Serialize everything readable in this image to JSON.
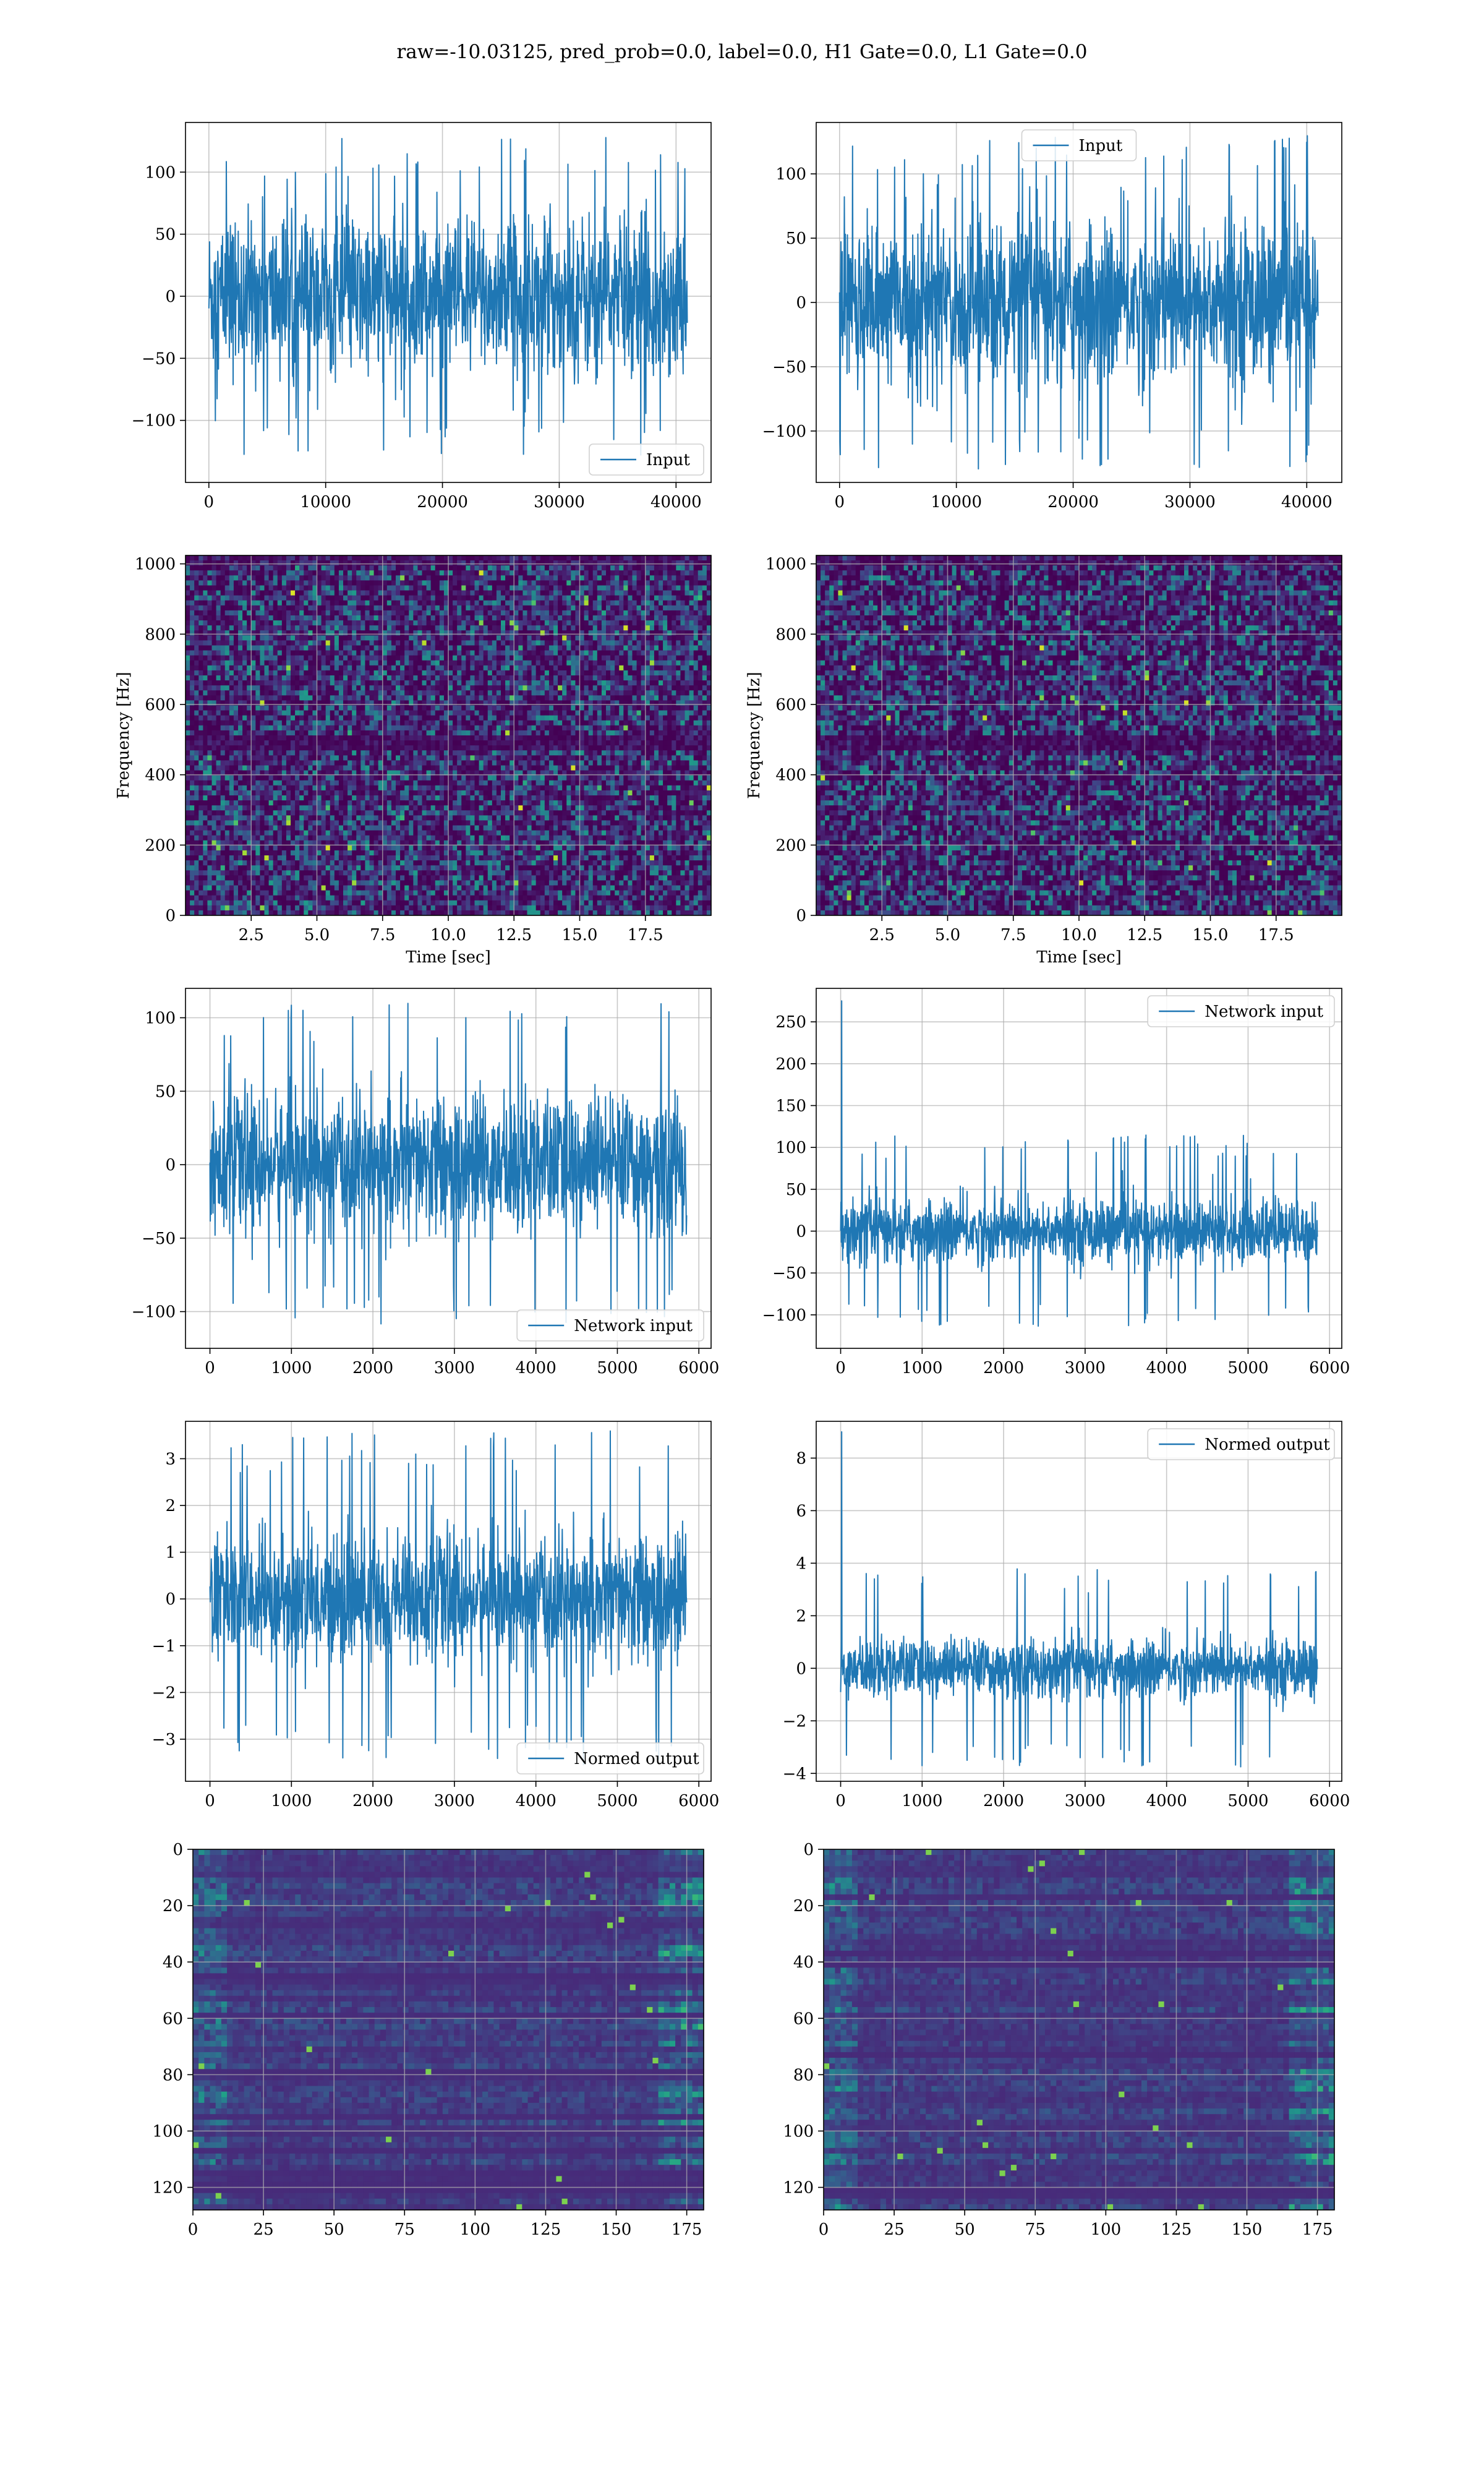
{
  "figure": {
    "title": "raw=-10.03125, pred_prob=0.0, label=0.0, H1 Gate=0.0, L1 Gate=0.0"
  },
  "colors": {
    "line": "#1f77b4",
    "grid": "#b0b0b0",
    "viridis_dark": "#440154",
    "viridis_blue": "#3b528b",
    "viridis_teal": "#21918c",
    "viridis_green": "#5ec962",
    "viridis_yellow": "#fde725"
  },
  "chart_data": [
    {
      "id": "h1_input",
      "type": "line",
      "series": [
        {
          "name": "Input",
          "x_range": [
            0,
            40960
          ],
          "amplitude_typical": 75,
          "amplitude_peak": 128
        }
      ],
      "xlim": [
        -2000,
        43000
      ],
      "ylim": [
        -150,
        140
      ],
      "xticks": [
        0,
        10000,
        20000,
        30000,
        40000
      ],
      "yticks": [
        -100,
        -50,
        0,
        50,
        100
      ],
      "legend_loc": "lower right",
      "grid": true
    },
    {
      "id": "l1_input",
      "type": "line",
      "series": [
        {
          "name": "Input",
          "x_range": [
            0,
            40960
          ],
          "amplitude_typical": 75,
          "amplitude_peak": 130
        }
      ],
      "xlim": [
        -2000,
        43000
      ],
      "ylim": [
        -140,
        140
      ],
      "xticks": [
        0,
        10000,
        20000,
        30000,
        40000
      ],
      "yticks": [
        -100,
        -50,
        0,
        50,
        100
      ],
      "legend_loc": "upper center",
      "grid": true
    },
    {
      "id": "h1_spectrogram",
      "type": "heatmap",
      "xlabel": "Time [sec]",
      "ylabel": "Frequency [Hz]",
      "xlim": [
        0,
        20
      ],
      "ylim": [
        0,
        1024
      ],
      "xticks": [
        2.5,
        5.0,
        7.5,
        10.0,
        12.5,
        15.0,
        17.5
      ],
      "yticks": [
        0,
        200,
        400,
        600,
        800,
        1000
      ],
      "colormap": "viridis",
      "dark_band_hz": 500,
      "grid": true
    },
    {
      "id": "l1_spectrogram",
      "type": "heatmap",
      "xlabel": "Time [sec]",
      "ylabel": "Frequency [Hz]",
      "xlim": [
        0,
        20
      ],
      "ylim": [
        0,
        1024
      ],
      "xticks": [
        2.5,
        5.0,
        7.5,
        10.0,
        12.5,
        15.0,
        17.5
      ],
      "yticks": [
        0,
        200,
        400,
        600,
        800,
        1000
      ],
      "colormap": "viridis",
      "dark_band_hz": 500,
      "grid": true
    },
    {
      "id": "h1_network_input",
      "type": "line",
      "series": [
        {
          "name": "Network input",
          "x_range": [
            0,
            5850
          ],
          "amplitude_typical": 55,
          "amplitude_peak": 110
        }
      ],
      "xlim": [
        -300,
        6150
      ],
      "ylim": [
        -125,
        120
      ],
      "xticks": [
        0,
        1000,
        2000,
        3000,
        4000,
        5000,
        6000
      ],
      "yticks": [
        -100,
        -50,
        0,
        50,
        100
      ],
      "legend_loc": "lower right",
      "grid": true
    },
    {
      "id": "l1_network_input",
      "type": "line",
      "series": [
        {
          "name": "Network input",
          "x_range": [
            0,
            5850
          ],
          "amplitude_typical": 45,
          "amplitude_peak": 115,
          "spike_value": 275,
          "dip_value": -110
        }
      ],
      "xlim": [
        -300,
        6150
      ],
      "ylim": [
        -140,
        290
      ],
      "xticks": [
        0,
        1000,
        2000,
        3000,
        4000,
        5000,
        6000
      ],
      "yticks": [
        -100,
        -50,
        0,
        50,
        100,
        150,
        200,
        250
      ],
      "legend_loc": "upper right",
      "grid": true
    },
    {
      "id": "h1_normed_output",
      "type": "line",
      "series": [
        {
          "name": "Normed output",
          "x_range": [
            0,
            5850
          ],
          "amplitude_typical": 1.6,
          "amplitude_peak": 3.6
        }
      ],
      "xlim": [
        -300,
        6150
      ],
      "ylim": [
        -3.9,
        3.8
      ],
      "xticks": [
        0,
        1000,
        2000,
        3000,
        4000,
        5000,
        6000
      ],
      "yticks": [
        -3,
        -2,
        -1,
        0,
        1,
        2,
        3
      ],
      "legend_loc": "lower right",
      "grid": true
    },
    {
      "id": "l1_normed_output",
      "type": "line",
      "series": [
        {
          "name": "Normed output",
          "x_range": [
            0,
            5850
          ],
          "amplitude_typical": 1.3,
          "amplitude_peak": 3.8,
          "spike_value": 9.0,
          "dip_value": -3.7
        }
      ],
      "xlim": [
        -300,
        6150
      ],
      "ylim": [
        -4.3,
        9.4
      ],
      "xticks": [
        0,
        1000,
        2000,
        3000,
        4000,
        5000,
        6000
      ],
      "yticks": [
        -4,
        -2,
        0,
        2,
        4,
        6,
        8
      ],
      "legend_loc": "upper right",
      "grid": true
    },
    {
      "id": "h1_feature_map",
      "type": "heatmap",
      "xlim": [
        0,
        181
      ],
      "ylim": [
        128,
        0
      ],
      "xticks": [
        0,
        25,
        50,
        75,
        100,
        125,
        150,
        175
      ],
      "yticks": [
        0,
        20,
        40,
        60,
        80,
        100,
        120
      ],
      "colormap": "viridis",
      "grid": true
    },
    {
      "id": "l1_feature_map",
      "type": "heatmap",
      "xlim": [
        0,
        181
      ],
      "ylim": [
        128,
        0
      ],
      "xticks": [
        0,
        25,
        50,
        75,
        100,
        125,
        150,
        175
      ],
      "yticks": [
        0,
        20,
        40,
        60,
        80,
        100,
        120
      ],
      "colormap": "viridis",
      "grid": true
    }
  ]
}
